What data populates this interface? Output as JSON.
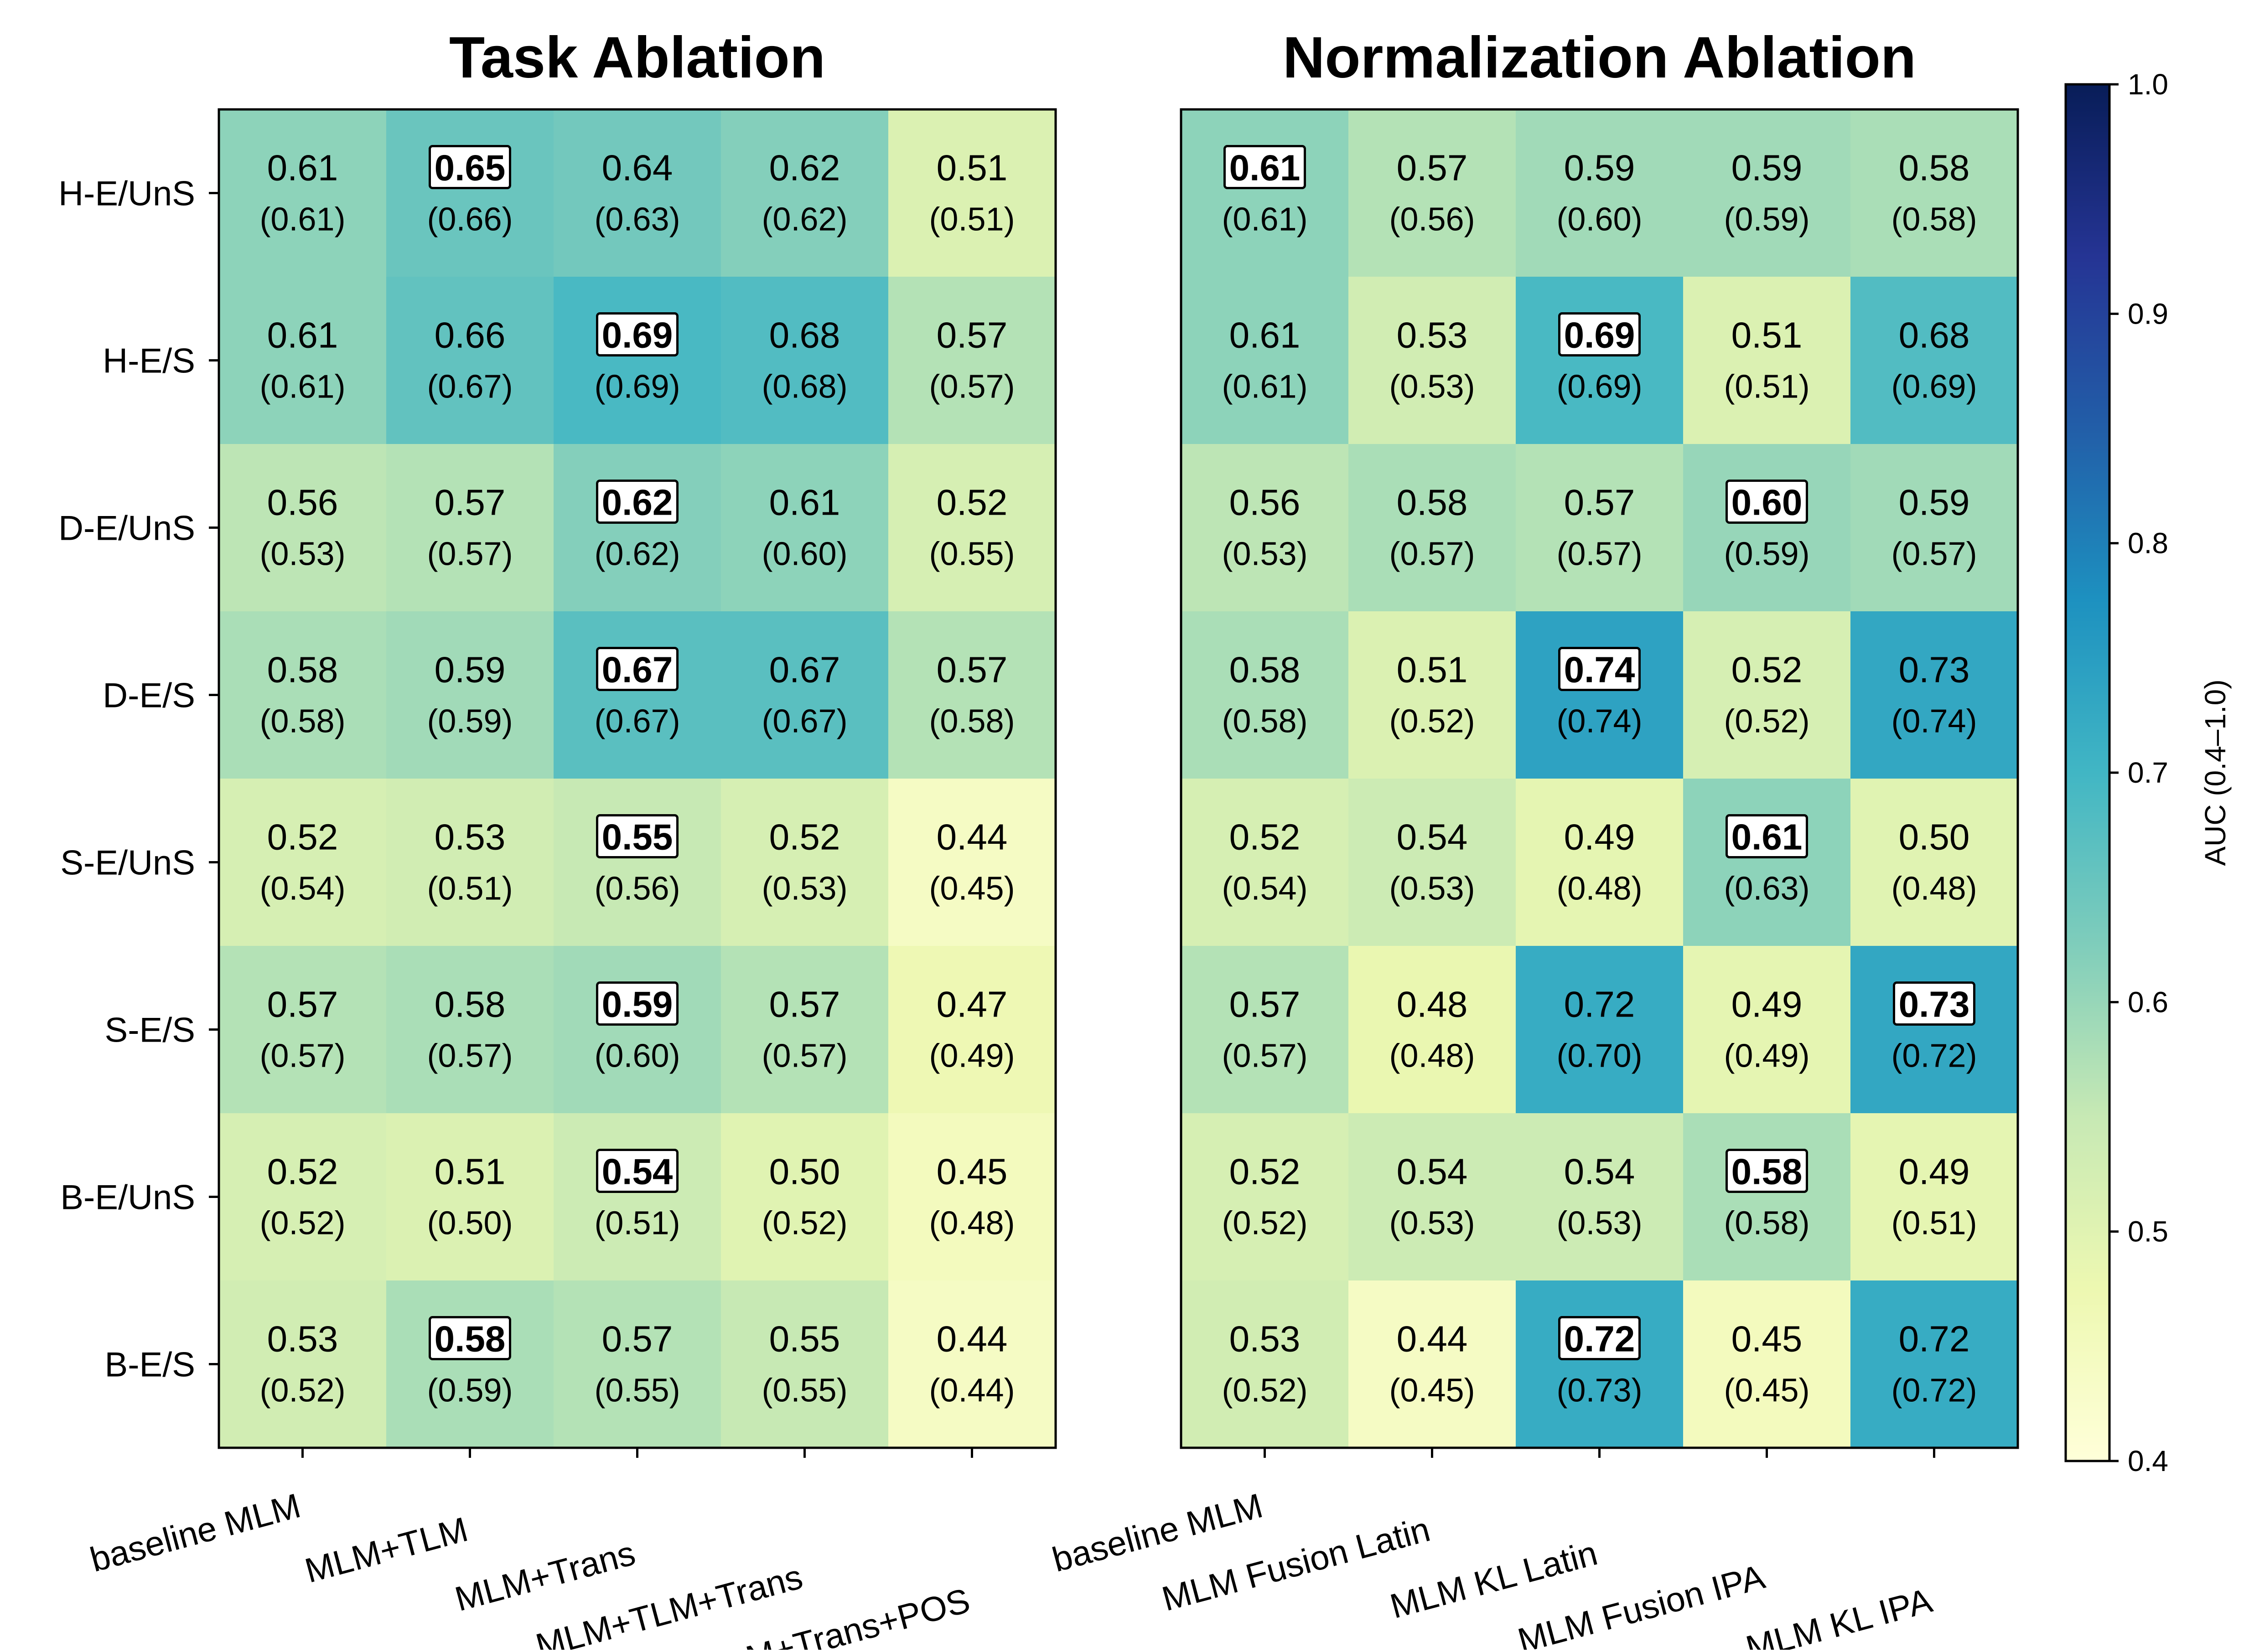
{
  "chart_data": [
    {
      "type": "heatmap",
      "title": "Task Ablation",
      "rows": [
        "H-E/UnS",
        "H-E/S",
        "D-E/UnS",
        "D-E/S",
        "S-E/UnS",
        "S-E/S",
        "B-E/UnS",
        "B-E/S"
      ],
      "columns": [
        "baseline MLM",
        "MLM+TLM",
        "MLM+Trans",
        "MLM+TLM+Trans",
        "MLM+TLM+Trans+POS"
      ],
      "values": [
        [
          0.61,
          0.65,
          0.64,
          0.62,
          0.51
        ],
        [
          0.61,
          0.66,
          0.69,
          0.68,
          0.57
        ],
        [
          0.56,
          0.57,
          0.62,
          0.61,
          0.52
        ],
        [
          0.58,
          0.59,
          0.67,
          0.67,
          0.57
        ],
        [
          0.52,
          0.53,
          0.55,
          0.52,
          0.44
        ],
        [
          0.57,
          0.58,
          0.59,
          0.57,
          0.47
        ],
        [
          0.52,
          0.51,
          0.54,
          0.5,
          0.45
        ],
        [
          0.53,
          0.58,
          0.57,
          0.55,
          0.44
        ]
      ],
      "secondary_values": [
        [
          0.61,
          0.66,
          0.63,
          0.62,
          0.51
        ],
        [
          0.61,
          0.67,
          0.69,
          0.68,
          0.57
        ],
        [
          0.53,
          0.57,
          0.62,
          0.6,
          0.55
        ],
        [
          0.58,
          0.59,
          0.67,
          0.67,
          0.58
        ],
        [
          0.54,
          0.51,
          0.56,
          0.53,
          0.45
        ],
        [
          0.57,
          0.57,
          0.6,
          0.57,
          0.49
        ],
        [
          0.52,
          0.5,
          0.51,
          0.52,
          0.48
        ],
        [
          0.52,
          0.59,
          0.55,
          0.55,
          0.44
        ]
      ],
      "highlighted_col_per_row": [
        1,
        2,
        2,
        2,
        2,
        2,
        2,
        1
      ]
    },
    {
      "type": "heatmap",
      "title": "Normalization Ablation",
      "rows": [
        "H-E/UnS",
        "H-E/S",
        "D-E/UnS",
        "D-E/S",
        "S-E/UnS",
        "S-E/S",
        "B-E/UnS",
        "B-E/S"
      ],
      "columns": [
        "baseline MLM",
        "MLM Fusion Latin",
        "MLM KL Latin",
        "MLM Fusion IPA",
        "MLM KL IPA"
      ],
      "values": [
        [
          0.61,
          0.57,
          0.59,
          0.59,
          0.58
        ],
        [
          0.61,
          0.53,
          0.69,
          0.51,
          0.68
        ],
        [
          0.56,
          0.58,
          0.57,
          0.6,
          0.59
        ],
        [
          0.58,
          0.51,
          0.74,
          0.52,
          0.73
        ],
        [
          0.52,
          0.54,
          0.49,
          0.61,
          0.5
        ],
        [
          0.57,
          0.48,
          0.72,
          0.49,
          0.73
        ],
        [
          0.52,
          0.54,
          0.54,
          0.58,
          0.49
        ],
        [
          0.53,
          0.44,
          0.72,
          0.45,
          0.72
        ]
      ],
      "secondary_values": [
        [
          0.61,
          0.56,
          0.6,
          0.59,
          0.58
        ],
        [
          0.61,
          0.53,
          0.69,
          0.51,
          0.69
        ],
        [
          0.53,
          0.57,
          0.57,
          0.59,
          0.57
        ],
        [
          0.58,
          0.52,
          0.74,
          0.52,
          0.74
        ],
        [
          0.54,
          0.53,
          0.48,
          0.63,
          0.48
        ],
        [
          0.57,
          0.48,
          0.7,
          0.49,
          0.72
        ],
        [
          0.52,
          0.53,
          0.53,
          0.58,
          0.51
        ],
        [
          0.52,
          0.45,
          0.73,
          0.45,
          0.72
        ]
      ],
      "highlighted_col_per_row": [
        0,
        2,
        3,
        2,
        3,
        4,
        3,
        2
      ]
    }
  ],
  "colorbar": {
    "label": "AUC (0.4–1.0)",
    "range": [
      0.4,
      1.0
    ],
    "ticks": [
      0.4,
      0.5,
      0.6,
      0.7,
      0.8,
      0.9,
      1.0
    ],
    "colormap": "YlGnBu",
    "colormap_stops": [
      "#ffffd9",
      "#edf8b1",
      "#c7e9b4",
      "#7fcdbb",
      "#41b6c4",
      "#1d91c0",
      "#225ea8",
      "#253494",
      "#081d58"
    ]
  }
}
